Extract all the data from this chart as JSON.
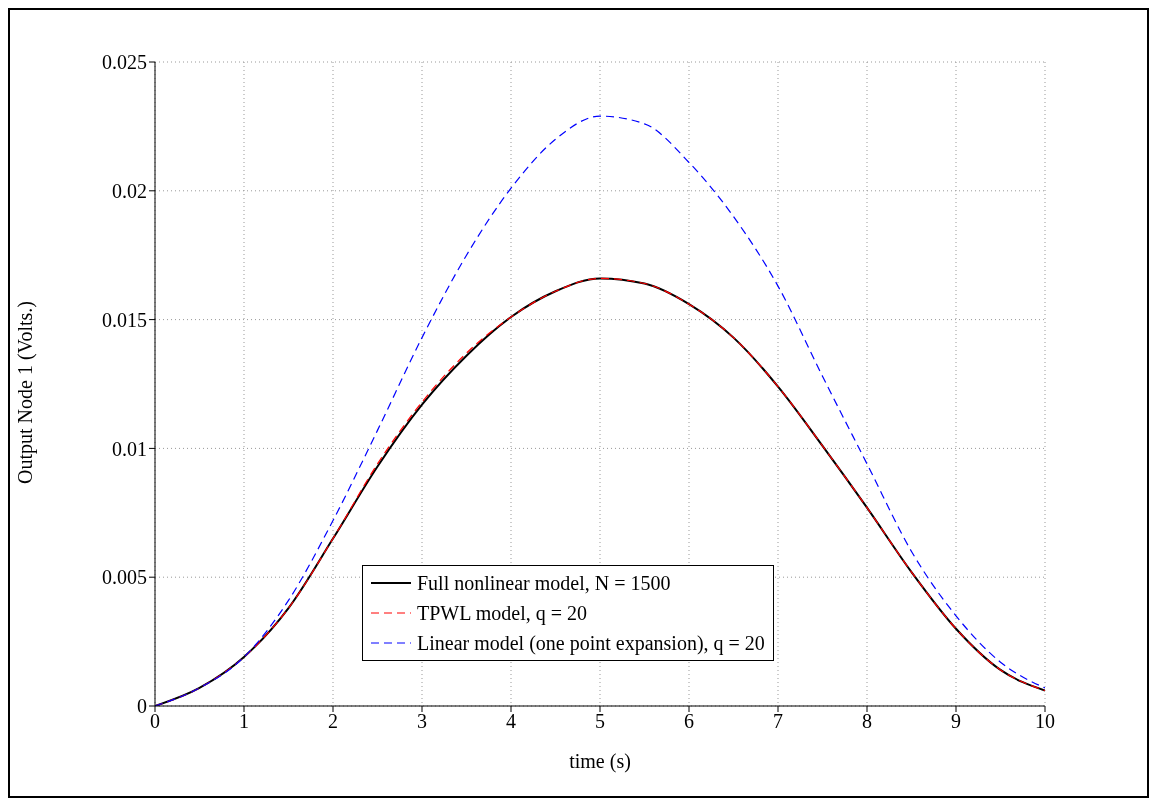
{
  "chart_data": {
    "type": "line",
    "xlabel": "time (s)",
    "ylabel": "Output Node 1  (Volts.)",
    "x": [
      0,
      0.5,
      1,
      1.5,
      2,
      2.5,
      3,
      3.5,
      4,
      4.5,
      5,
      5.5,
      6,
      6.5,
      7,
      7.5,
      8,
      8.5,
      9,
      9.5,
      10
    ],
    "series": [
      {
        "name": "Full nonlinear model, N = 1500",
        "color": "#000000",
        "line_style": "solid",
        "values": [
          0,
          0.0007,
          0.0019,
          0.0038,
          0.0065,
          0.0093,
          0.0117,
          0.0136,
          0.0151,
          0.0161,
          0.0166,
          0.0164,
          0.0156,
          0.0143,
          0.0124,
          0.0101,
          0.0077,
          0.0052,
          0.003,
          0.0014,
          0.0006
        ]
      },
      {
        "name": "TPWL model, q = 20",
        "color": "#ff0000",
        "line_style": "dashed",
        "values": [
          0,
          0.0007,
          0.0019,
          0.0038,
          0.0065,
          0.0094,
          0.0118,
          0.0137,
          0.0151,
          0.0161,
          0.0166,
          0.0164,
          0.0156,
          0.0143,
          0.0124,
          0.0101,
          0.0077,
          0.0052,
          0.003,
          0.0014,
          0.0006
        ]
      },
      {
        "name": "Linear model (one point expansion), q = 20",
        "color": "#0000ff",
        "line_style": "dashed",
        "values": [
          0,
          0.0007,
          0.0019,
          0.0041,
          0.0072,
          0.0107,
          0.0143,
          0.0175,
          0.0201,
          0.022,
          0.0229,
          0.0226,
          0.0211,
          0.019,
          0.0163,
          0.0128,
          0.0094,
          0.006,
          0.0035,
          0.0017,
          0.0007
        ]
      }
    ],
    "xlim": [
      0,
      10
    ],
    "xticks": [
      0,
      1,
      2,
      3,
      4,
      5,
      6,
      7,
      8,
      9,
      10
    ],
    "ylim": [
      0,
      0.025
    ],
    "yticks": [
      0,
      0.005,
      0.01,
      0.015,
      0.02,
      0.025
    ],
    "grid": true,
    "legend": "bottom",
    "marker": "none"
  }
}
